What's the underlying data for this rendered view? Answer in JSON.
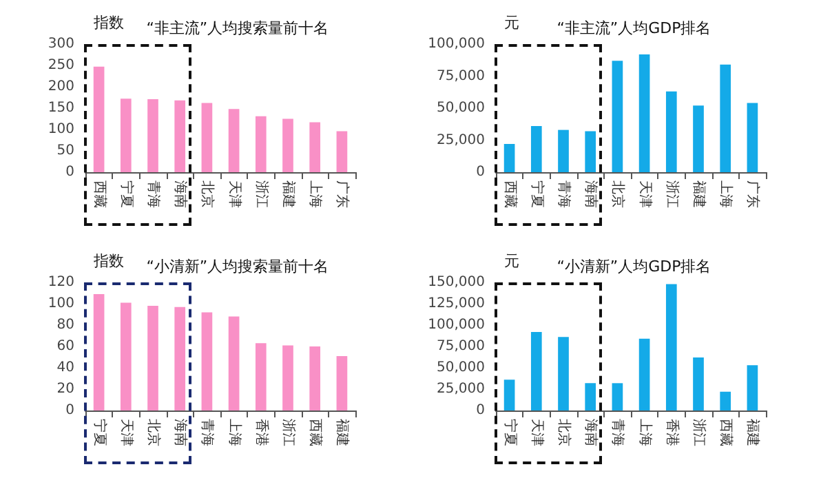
{
  "chart_data": [
    {
      "type": "bar",
      "title": "“非主流”人均搜索量前十名",
      "ylabel": "指数",
      "categories": [
        "西藏",
        "宁夏",
        "青海",
        "海南",
        "北京",
        "天津",
        "浙江",
        "福建",
        "上海",
        "广东"
      ],
      "values": [
        247,
        172,
        171,
        168,
        162,
        148,
        131,
        125,
        117,
        96
      ],
      "color": "#f990c6",
      "ylim": [
        0,
        300
      ],
      "yticks": [
        0,
        50,
        100,
        150,
        200,
        250,
        300
      ],
      "grid": false
    },
    {
      "type": "bar",
      "title": "“非主流”人均GDP排名",
      "ylabel": "元",
      "categories": [
        "西藏",
        "宁夏",
        "青海",
        "海南",
        "北京",
        "天津",
        "浙江",
        "福建",
        "上海",
        "广东"
      ],
      "values": [
        22000,
        36000,
        33000,
        32000,
        87000,
        92000,
        63000,
        52000,
        84000,
        54000
      ],
      "color": "#14aae8",
      "ylim": [
        0,
        100000
      ],
      "yticks": [
        0,
        {
          "value": 25000,
          "label": "25,000"
        },
        {
          "value": 50000,
          "label": "50,000"
        },
        {
          "value": 75000,
          "label": "75,000"
        },
        {
          "value": 100000,
          "label": "100,000"
        }
      ],
      "grid": false
    },
    {
      "type": "bar",
      "title": "“小清新”人均搜索量前十名",
      "ylabel": "指数",
      "categories": [
        "宁夏",
        "天津",
        "北京",
        "海南",
        "青海",
        "上海",
        "香港",
        "浙江",
        "西藏",
        "福建"
      ],
      "values": [
        109,
        101,
        98,
        97,
        92,
        88,
        63,
        61,
        60,
        51
      ],
      "color": "#f990c6",
      "ylim": [
        0,
        120
      ],
      "yticks": [
        0,
        20,
        40,
        60,
        80,
        100,
        120
      ],
      "grid": false
    },
    {
      "type": "bar",
      "title": "“小清新”人均GDP排名",
      "ylabel": "元",
      "categories": [
        "宁夏",
        "天津",
        "北京",
        "海南",
        "青海",
        "上海",
        "香港",
        "浙江",
        "西藏",
        "福建"
      ],
      "values": [
        36000,
        92000,
        86000,
        32000,
        32000,
        84000,
        148000,
        62000,
        22000,
        53000
      ],
      "color": "#14aae8",
      "ylim": [
        0,
        150000
      ],
      "yticks": [
        0,
        {
          "value": 25000,
          "label": "25,000"
        },
        {
          "value": 50000,
          "label": "50,000"
        },
        {
          "value": 75000,
          "label": "75,000"
        },
        {
          "value": 100000,
          "label": "100,000"
        },
        {
          "value": 125000,
          "label": "125,000"
        },
        {
          "value": 150000,
          "label": "150,000"
        }
      ],
      "grid": false
    }
  ]
}
